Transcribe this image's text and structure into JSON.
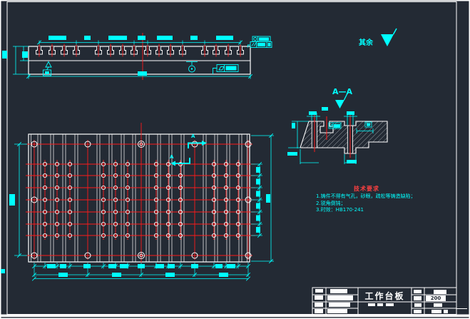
{
  "drawing": {
    "background": "#232a34",
    "line_color": "#ffffff",
    "dimension_color": "#00ffff",
    "centerline_color": "#ff1a1a"
  },
  "surface_finish": {
    "label": "其余"
  },
  "section_view": {
    "label": "A—A",
    "marker_letter": "A"
  },
  "tech_notes": {
    "title": "技术要求",
    "lines": [
      "1.铸件不得有气孔，砂眼，疏松等铸造缺陷；",
      "2.锐角倒钝；",
      "3.时效：HB170-241"
    ]
  },
  "title_block": {
    "part_name": "工作台板",
    "code": "200"
  }
}
